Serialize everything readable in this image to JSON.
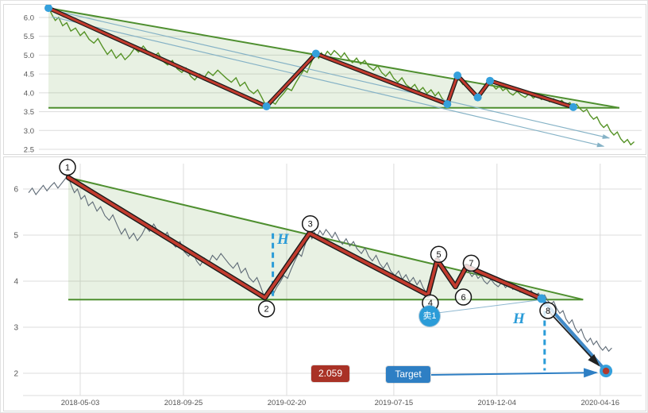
{
  "colors": {
    "price_top": "#569327",
    "price_bottom": "#5e6a76",
    "triangle_line": "#4e8f2f",
    "triangle_fill": "rgba(130,180,100,0.18)",
    "zigzag_outline": "#1a1a1a",
    "zigzag": "#c23b2e",
    "pivot_dot": "#35a0dc",
    "dashed_line": "#2b9cd8",
    "target_line": "#2e7fc4",
    "projection_arrow": "#85b2c6",
    "grid": "#dcdcdc",
    "axis_text": "#555555",
    "badge_red": "#a93226",
    "badge_blue": "#2e7fc4",
    "sell_badge_bg": "#2b9cd8",
    "number_circle_stroke": "#141414",
    "black_arrow": "#222222",
    "target_dot_inner": "#b03a2e",
    "h_label": "#2b9cd8"
  },
  "annotations": {
    "h1": "H",
    "h2": "H",
    "sell": "卖1",
    "target_label": "Target",
    "target_value": "2.059"
  },
  "pivots": [
    {
      "label": "1",
      "t": 0.065,
      "v": 6.25
    },
    {
      "label": "2",
      "t": 0.387,
      "v": 3.64
    },
    {
      "label": "3",
      "t": 0.46,
      "v": 5.04
    },
    {
      "label": "4",
      "t": 0.654,
      "v": 3.7
    },
    {
      "label": "5",
      "t": 0.669,
      "v": 4.46
    },
    {
      "label": "6",
      "t": 0.699,
      "v": 3.88
    },
    {
      "label": "7",
      "t": 0.717,
      "v": 4.32
    },
    {
      "label": "8",
      "t": 0.84,
      "v": 3.62
    }
  ],
  "triangle": {
    "t_start": 0.065,
    "t_apex": 0.908,
    "v_top": 6.25,
    "v_support": 3.6
  },
  "measure_lines": [
    {
      "name": "H1",
      "t": 0.4,
      "v_from": 5.04,
      "v_to": 3.6
    },
    {
      "name": "H2",
      "t": 0.845,
      "v_from": 3.56,
      "v_to": 2.06
    }
  ],
  "projection_arrows": [
    {
      "from": [
        0.07,
        6.2
      ],
      "to": [
        0.893,
        2.8
      ]
    },
    {
      "from": [
        0.07,
        6.02
      ],
      "to": [
        0.885,
        2.58
      ]
    }
  ],
  "target": {
    "value": 2.059,
    "t": 0.9455,
    "v": 2.05
  },
  "price_series": [
    [
      0.0,
      5.92
    ],
    [
      0.006,
      6.02
    ],
    [
      0.012,
      5.88
    ],
    [
      0.018,
      5.98
    ],
    [
      0.024,
      6.08
    ],
    [
      0.03,
      5.96
    ],
    [
      0.036,
      6.06
    ],
    [
      0.042,
      6.14
    ],
    [
      0.048,
      6.02
    ],
    [
      0.054,
      6.12
    ],
    [
      0.06,
      6.22
    ],
    [
      0.065,
      6.27
    ],
    [
      0.07,
      6.08
    ],
    [
      0.075,
      5.92
    ],
    [
      0.08,
      6.0
    ],
    [
      0.086,
      5.78
    ],
    [
      0.092,
      5.86
    ],
    [
      0.098,
      5.64
    ],
    [
      0.105,
      5.72
    ],
    [
      0.112,
      5.52
    ],
    [
      0.118,
      5.62
    ],
    [
      0.125,
      5.42
    ],
    [
      0.132,
      5.32
    ],
    [
      0.138,
      5.44
    ],
    [
      0.145,
      5.22
    ],
    [
      0.152,
      5.02
    ],
    [
      0.158,
      5.14
    ],
    [
      0.165,
      4.92
    ],
    [
      0.172,
      5.04
    ],
    [
      0.178,
      4.88
    ],
    [
      0.185,
      5.0
    ],
    [
      0.192,
      5.18
    ],
    [
      0.198,
      5.08
    ],
    [
      0.205,
      5.24
    ],
    [
      0.212,
      5.08
    ],
    [
      0.22,
      4.94
    ],
    [
      0.227,
      5.06
    ],
    [
      0.234,
      4.84
    ],
    [
      0.241,
      4.74
    ],
    [
      0.248,
      4.86
    ],
    [
      0.255,
      4.64
    ],
    [
      0.262,
      4.54
    ],
    [
      0.268,
      4.66
    ],
    [
      0.275,
      4.44
    ],
    [
      0.281,
      4.34
    ],
    [
      0.288,
      4.5
    ],
    [
      0.295,
      4.4
    ],
    [
      0.301,
      4.56
    ],
    [
      0.308,
      4.46
    ],
    [
      0.315,
      4.6
    ],
    [
      0.322,
      4.48
    ],
    [
      0.328,
      4.38
    ],
    [
      0.335,
      4.28
    ],
    [
      0.342,
      4.4
    ],
    [
      0.348,
      4.18
    ],
    [
      0.355,
      4.28
    ],
    [
      0.361,
      4.08
    ],
    [
      0.368,
      3.98
    ],
    [
      0.374,
      4.08
    ],
    [
      0.38,
      3.88
    ],
    [
      0.385,
      3.7
    ],
    [
      0.39,
      3.64
    ],
    [
      0.395,
      3.76
    ],
    [
      0.4,
      3.7
    ],
    [
      0.406,
      3.86
    ],
    [
      0.412,
      3.98
    ],
    [
      0.418,
      4.12
    ],
    [
      0.424,
      4.06
    ],
    [
      0.43,
      4.26
    ],
    [
      0.436,
      4.44
    ],
    [
      0.442,
      4.6
    ],
    [
      0.447,
      4.54
    ],
    [
      0.452,
      4.76
    ],
    [
      0.456,
      4.92
    ],
    [
      0.46,
      5.04
    ],
    [
      0.464,
      4.92
    ],
    [
      0.468,
      5.06
    ],
    [
      0.472,
      4.96
    ],
    [
      0.477,
      5.1
    ],
    [
      0.482,
      5.0
    ],
    [
      0.487,
      5.12
    ],
    [
      0.492,
      5.04
    ],
    [
      0.497,
      4.94
    ],
    [
      0.502,
      5.06
    ],
    [
      0.508,
      4.9
    ],
    [
      0.514,
      4.8
    ],
    [
      0.52,
      4.92
    ],
    [
      0.526,
      4.76
    ],
    [
      0.532,
      4.86
    ],
    [
      0.538,
      4.7
    ],
    [
      0.545,
      4.6
    ],
    [
      0.551,
      4.72
    ],
    [
      0.557,
      4.54
    ],
    [
      0.563,
      4.44
    ],
    [
      0.569,
      4.56
    ],
    [
      0.575,
      4.38
    ],
    [
      0.581,
      4.28
    ],
    [
      0.587,
      4.4
    ],
    [
      0.593,
      4.22
    ],
    [
      0.6,
      4.12
    ],
    [
      0.606,
      4.22
    ],
    [
      0.612,
      4.04
    ],
    [
      0.618,
      4.14
    ],
    [
      0.624,
      3.98
    ],
    [
      0.63,
      4.08
    ],
    [
      0.636,
      3.92
    ],
    [
      0.641,
      4.02
    ],
    [
      0.646,
      3.86
    ],
    [
      0.65,
      3.78
    ],
    [
      0.654,
      3.7
    ],
    [
      0.658,
      3.92
    ],
    [
      0.662,
      4.18
    ],
    [
      0.666,
      4.38
    ],
    [
      0.669,
      4.46
    ],
    [
      0.673,
      4.32
    ],
    [
      0.677,
      4.22
    ],
    [
      0.681,
      4.28
    ],
    [
      0.685,
      4.12
    ],
    [
      0.689,
      4.04
    ],
    [
      0.694,
      3.96
    ],
    [
      0.699,
      3.88
    ],
    [
      0.703,
      4.02
    ],
    [
      0.708,
      4.16
    ],
    [
      0.713,
      4.26
    ],
    [
      0.717,
      4.32
    ],
    [
      0.721,
      4.2
    ],
    [
      0.726,
      4.1
    ],
    [
      0.731,
      4.18
    ],
    [
      0.736,
      4.06
    ],
    [
      0.741,
      4.12
    ],
    [
      0.746,
      4.0
    ],
    [
      0.751,
      3.94
    ],
    [
      0.757,
      4.04
    ],
    [
      0.763,
      3.94
    ],
    [
      0.769,
      3.88
    ],
    [
      0.775,
      3.98
    ],
    [
      0.781,
      3.86
    ],
    [
      0.787,
      3.94
    ],
    [
      0.793,
      3.82
    ],
    [
      0.799,
      3.88
    ],
    [
      0.805,
      3.76
    ],
    [
      0.811,
      3.84
    ],
    [
      0.817,
      3.72
    ],
    [
      0.823,
      3.8
    ],
    [
      0.829,
      3.68
    ],
    [
      0.835,
      3.74
    ],
    [
      0.84,
      3.62
    ],
    [
      0.845,
      3.7
    ],
    [
      0.85,
      3.58
    ],
    [
      0.855,
      3.5
    ],
    [
      0.86,
      3.56
    ],
    [
      0.865,
      3.4
    ],
    [
      0.87,
      3.3
    ],
    [
      0.875,
      3.36
    ],
    [
      0.88,
      3.18
    ],
    [
      0.885,
      3.08
    ],
    [
      0.89,
      3.16
    ],
    [
      0.895,
      2.98
    ],
    [
      0.9,
      2.88
    ],
    [
      0.905,
      2.96
    ],
    [
      0.91,
      2.78
    ],
    [
      0.915,
      2.68
    ],
    [
      0.92,
      2.76
    ],
    [
      0.925,
      2.62
    ],
    [
      0.93,
      2.7
    ],
    [
      0.935,
      2.58
    ],
    [
      0.94,
      2.5
    ],
    [
      0.945,
      2.58
    ],
    [
      0.95,
      2.48
    ],
    [
      0.955,
      2.55
    ]
  ],
  "chart_data": [
    {
      "panel": "top",
      "type": "line",
      "title": "",
      "y_ticks": [
        "6.0",
        "5.5",
        "5.0",
        "4.5",
        "4.0",
        "3.5",
        "3.0",
        "2.5"
      ],
      "ylim": [
        2.4,
        6.35
      ],
      "grid": "horizontal",
      "legend": "none",
      "series": [
        {
          "name": "price",
          "ref": "price_series",
          "t_range": [
            0.058,
            0.932
          ]
        }
      ],
      "overlays": [
        "descending-triangle",
        "zigzag-wave",
        "pivot-dots",
        "projection-arrows"
      ]
    },
    {
      "panel": "bottom",
      "type": "line",
      "title": "",
      "x_ticks": [
        "2018-05-03",
        "2018-09-25",
        "2019-02-20",
        "2019-07-15",
        "2019-12-04",
        "2020-04-16"
      ],
      "x_tick_t": [
        0.0845,
        0.2536,
        0.4226,
        0.598,
        0.767,
        0.936
      ],
      "y_ticks": [
        "6",
        "5",
        "4",
        "3",
        "2"
      ],
      "ylim": [
        1.7,
        6.6
      ],
      "grid": "both",
      "legend": "none",
      "series": [
        {
          "name": "price",
          "ref": "price_series",
          "t_range": [
            0.0,
            0.955
          ]
        }
      ],
      "overlays": [
        "descending-triangle",
        "zigzag-wave",
        "numbered-pivots",
        "measure-H-lines",
        "sell-marker",
        "target-projection"
      ]
    }
  ]
}
